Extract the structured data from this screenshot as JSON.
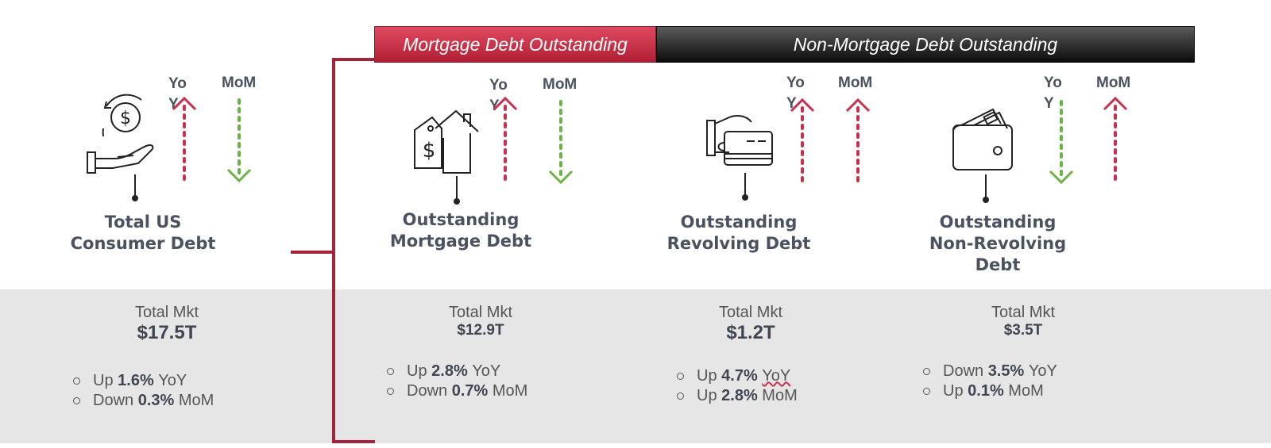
{
  "banners": {
    "mortgage": "Mortgage Debt Outstanding",
    "non_mortgage": "Non-Mortgage Debt Outstanding"
  },
  "colors": {
    "up": "#c8324e",
    "down": "#6bb443",
    "bracket": "#a3243a"
  },
  "labels": {
    "yoy": "YoY",
    "mom": "MoM",
    "total_mkt": "Total Mkt"
  },
  "cards": [
    {
      "icon": "money-hand-icon",
      "title_line1": "Total US",
      "title_line2": "Consumer Debt",
      "title_line3": "",
      "total": "$17.5T",
      "yoy_dir": "up",
      "mom_dir": "down",
      "b1": {
        "dir": "Up",
        "value": "1.6%",
        "unit": "YoY"
      },
      "b2": {
        "dir": "Down",
        "value": "0.3%",
        "unit": "MoM"
      }
    },
    {
      "icon": "house-price-tag-icon",
      "title_line1": "Outstanding",
      "title_line2": "Mortgage Debt",
      "title_line3": "",
      "total": "$12.9T",
      "yoy_dir": "up",
      "mom_dir": "down",
      "b1": {
        "dir": "Up",
        "value": "2.8%",
        "unit": "YoY"
      },
      "b2": {
        "dir": "Down",
        "value": "0.7%",
        "unit": "MoM"
      }
    },
    {
      "icon": "credit-card-hand-icon",
      "title_line1": "Outstanding",
      "title_line2": "Revolving Debt",
      "title_line3": "",
      "total": "$1.2T",
      "yoy_dir": "up",
      "mom_dir": "up",
      "b1": {
        "dir": "Up",
        "value": "4.7%",
        "unit": "YoY"
      },
      "b2": {
        "dir": "Up",
        "value": "2.8%",
        "unit": "MoM"
      }
    },
    {
      "icon": "wallet-cash-icon",
      "title_line1": "Outstanding",
      "title_line2": "Non-Revolving",
      "title_line3": "Debt",
      "total": "$3.5T",
      "yoy_dir": "down",
      "mom_dir": "up",
      "b1": {
        "dir": "Down",
        "value": "3.5%",
        "unit": "YoY"
      },
      "b2": {
        "dir": "Up",
        "value": "0.1%",
        "unit": "MoM"
      }
    }
  ]
}
